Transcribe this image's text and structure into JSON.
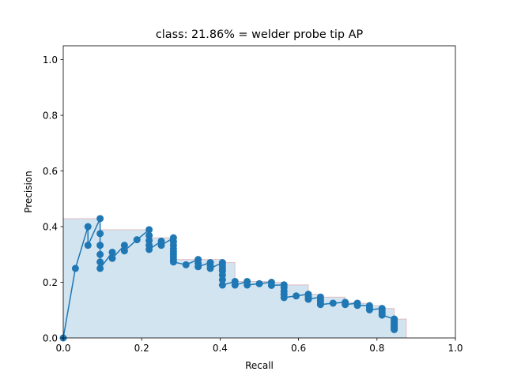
{
  "chart_data": {
    "type": "line",
    "title": "class: 21.86% = welder probe tip AP",
    "xlabel": "Recall",
    "ylabel": "Precision",
    "xlim": [
      0,
      1
    ],
    "ylim": [
      0,
      1.05
    ],
    "xticks": [
      0.0,
      0.2,
      0.4,
      0.6,
      0.8,
      1.0
    ],
    "yticks": [
      0.0,
      0.2,
      0.4,
      0.6,
      0.8,
      1.0
    ],
    "xtick_labels": [
      "0.0",
      "0.2",
      "0.4",
      "0.6",
      "0.8",
      "1.0"
    ],
    "ytick_labels": [
      "0.0",
      "0.2",
      "0.4",
      "0.6",
      "0.8",
      "1.0"
    ],
    "grid": false,
    "series": [
      {
        "role": "precision-recall curve",
        "color": "#1f77b4",
        "x": [
          0.0,
          0.031,
          0.063,
          0.063,
          0.094,
          0.094,
          0.094,
          0.094,
          0.094,
          0.094,
          0.125,
          0.125,
          0.156,
          0.156,
          0.188,
          0.219,
          0.219,
          0.219,
          0.219,
          0.219,
          0.25,
          0.25,
          0.281,
          0.281,
          0.281,
          0.281,
          0.281,
          0.281,
          0.281,
          0.281,
          0.281,
          0.313,
          0.344,
          0.344,
          0.344,
          0.375,
          0.375,
          0.375,
          0.406,
          0.406,
          0.406,
          0.406,
          0.406,
          0.406,
          0.406,
          0.438,
          0.438,
          0.469,
          0.469,
          0.5,
          0.531,
          0.531,
          0.563,
          0.563,
          0.563,
          0.563,
          0.563,
          0.594,
          0.625,
          0.625,
          0.625,
          0.656,
          0.656,
          0.656,
          0.656,
          0.688,
          0.719,
          0.719,
          0.75,
          0.75,
          0.781,
          0.781,
          0.781,
          0.813,
          0.813,
          0.813,
          0.813,
          0.844,
          0.844,
          0.844,
          0.844,
          0.844,
          0.844,
          0.844,
          0.844,
          0.844,
          0.844,
          0.844,
          0.844
        ],
        "y": [
          0.0,
          0.25,
          0.4,
          0.333,
          0.429,
          0.375,
          0.333,
          0.3,
          0.273,
          0.25,
          0.308,
          0.286,
          0.333,
          0.313,
          0.353,
          0.389,
          0.368,
          0.35,
          0.333,
          0.318,
          0.348,
          0.333,
          0.36,
          0.346,
          0.333,
          0.321,
          0.31,
          0.3,
          0.29,
          0.281,
          0.273,
          0.263,
          0.282,
          0.268,
          0.256,
          0.271,
          0.26,
          0.25,
          0.271,
          0.26,
          0.25,
          0.241,
          0.226,
          0.209,
          0.19,
          0.203,
          0.19,
          0.203,
          0.19,
          0.195,
          0.2,
          0.189,
          0.191,
          0.181,
          0.168,
          0.157,
          0.145,
          0.151,
          0.157,
          0.148,
          0.139,
          0.147,
          0.137,
          0.128,
          0.12,
          0.125,
          0.128,
          0.12,
          0.125,
          0.117,
          0.116,
          0.108,
          0.101,
          0.106,
          0.098,
          0.09,
          0.082,
          0.068,
          0.063,
          0.059,
          0.055,
          0.051,
          0.047,
          0.044,
          0.041,
          0.038,
          0.035,
          0.032,
          0.03
        ]
      },
      {
        "role": "interpolated precision envelope",
        "color": "#1f77b4",
        "fill_opacity": 0.2,
        "edge_color": "#d62728",
        "x": [
          0.0,
          0.094,
          0.094,
          0.219,
          0.219,
          0.281,
          0.281,
          0.406,
          0.406,
          0.438,
          0.438,
          0.531,
          0.531,
          0.563,
          0.563,
          0.625,
          0.625,
          0.656,
          0.656,
          0.719,
          0.719,
          0.75,
          0.75,
          0.781,
          0.781,
          0.813,
          0.813,
          0.844,
          0.844,
          0.875,
          0.875
        ],
        "y": [
          0.429,
          0.429,
          0.389,
          0.389,
          0.36,
          0.36,
          0.282,
          0.282,
          0.271,
          0.271,
          0.203,
          0.203,
          0.2,
          0.2,
          0.191,
          0.191,
          0.157,
          0.157,
          0.147,
          0.147,
          0.128,
          0.128,
          0.125,
          0.125,
          0.116,
          0.116,
          0.106,
          0.106,
          0.068,
          0.068,
          0.0
        ]
      }
    ]
  }
}
